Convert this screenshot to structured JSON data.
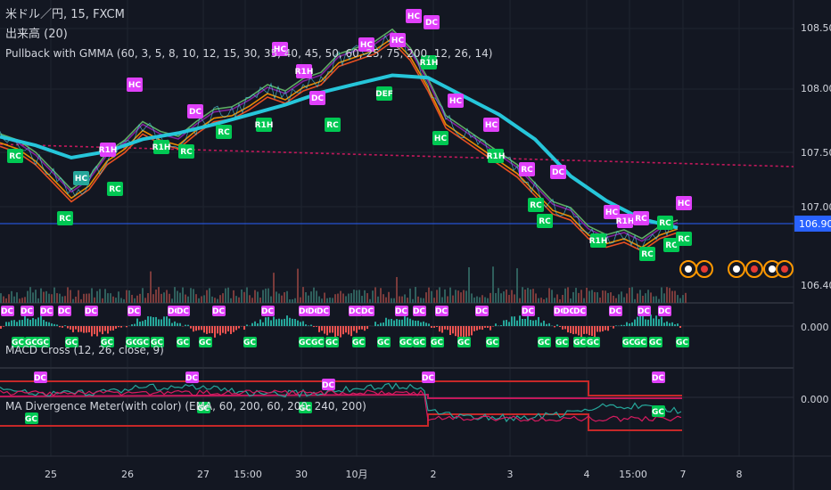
{
  "colors": {
    "background": "#131722",
    "grid": "#1f2430",
    "separator": "#2a2e39",
    "axis_text": "#d1d4dc",
    "price_badge": "#2962ff",
    "res_line": "#c2185b",
    "gmma_long": "#26c6da",
    "gmma_short_a": "#ff9800",
    "gmma_short_b": "#8e24aa",
    "gmma_short_c": "#66bb6a",
    "macd_up": "#26a69a",
    "macd_down": "#ef5350",
    "dc_label": "#e040fb",
    "gc_label": "#00c853"
  },
  "legend": {
    "symbol": "米ドル／円, 15, FXCM",
    "volume": "出来高 (20)",
    "gmma": "Pullback with GMMA (60, 3, 5, 8, 10, 12, 15, 30, 35, 40, 45, 50, 60, 25, 75, 200, 12, 26, 14)",
    "macd": "MACD Cross (12, 26, close, 9)",
    "divergence": "MA Divergence Meter(with color) (EMA, 60, 200, 60, 200, 240, 200)"
  },
  "price_axis": {
    "ticks": [
      "108.500",
      "108.000",
      "107.500",
      "107.000",
      "106.400"
    ],
    "current": "106.901"
  },
  "macd_axis": {
    "ticks": [
      "0.000"
    ]
  },
  "div_axis": {
    "ticks": [
      "0.000"
    ]
  },
  "time_axis": {
    "labels": [
      "25",
      "26",
      "27",
      "15:00",
      "30",
      "10月",
      "2",
      "3",
      "4",
      "15:00",
      "7",
      "8"
    ]
  },
  "chart_data": {
    "type": "line",
    "series": [
      {
        "x": [
          0,
          20,
          40,
          60,
          80,
          100,
          120,
          140,
          160,
          180,
          200,
          220,
          240,
          260,
          280,
          300,
          320,
          340,
          360,
          380,
          400,
          420,
          440,
          460,
          480,
          500,
          520,
          540,
          560,
          580,
          600,
          620,
          640,
          660,
          680,
          700,
          720,
          740,
          760
        ],
        "values": [
          107.6,
          107.55,
          107.45,
          107.3,
          107.15,
          107.25,
          107.45,
          107.55,
          107.7,
          107.62,
          107.58,
          107.7,
          107.8,
          107.82,
          107.9,
          108.0,
          107.95,
          108.05,
          108.1,
          108.25,
          108.3,
          108.35,
          108.45,
          108.3,
          108.05,
          107.75,
          107.65,
          107.55,
          107.45,
          107.35,
          107.2,
          107.05,
          107.0,
          106.85,
          106.78,
          106.82,
          106.75,
          106.85,
          106.9
        ]
      },
      {
        "x": [
          0,
          40,
          80,
          120,
          160,
          200,
          240,
          280,
          320,
          360,
          400,
          440,
          480,
          520,
          560,
          600,
          640,
          680,
          720,
          760
        ],
        "values": [
          107.62,
          107.55,
          107.45,
          107.5,
          107.6,
          107.65,
          107.72,
          107.8,
          107.88,
          107.98,
          108.05,
          108.12,
          108.1,
          107.95,
          107.8,
          107.6,
          107.3,
          107.1,
          106.95,
          106.88
        ]
      }
    ],
    "resistance_level": 107.4,
    "ylim": [
      106.35,
      108.6
    ]
  }
}
